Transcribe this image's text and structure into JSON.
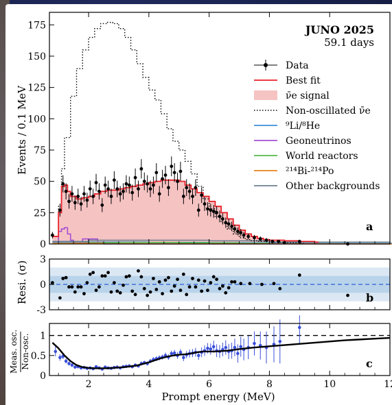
{
  "header": {
    "experiment": "JUNO 2025",
    "exposure": "59.1 days"
  },
  "panel_labels": {
    "a": "a",
    "b": "b",
    "c": "c"
  },
  "axis_labels": {
    "xlabel": "Prompt energy (MeV)",
    "ylabel_a": "Events / 0.1 MeV",
    "ylabel_b": "Resi. (σ)",
    "ylabel_c_num": "Meas. osc.",
    "ylabel_c_den": "Non-osc."
  },
  "colors": {
    "data": "#000000",
    "best_fit": "#e8202a",
    "signal_fill": "#f6c3c3",
    "non_osc": "#000000",
    "li_he": "#3a8fd9",
    "geoneutrinos": "#a24fd1",
    "world_reactors": "#52b946",
    "bipo": "#e6821e",
    "other": "#6e7f8f",
    "band1": "#b9d3ea",
    "band2": "#dbe8f4",
    "ratio_points": "#3a4fd8"
  },
  "legend": [
    {
      "key": "data",
      "label": "Data",
      "style": "point"
    },
    {
      "key": "best_fit",
      "label": "Best fit",
      "style": "line"
    },
    {
      "key": "signal_fill",
      "label": "ν̄e signal",
      "style": "fill"
    },
    {
      "key": "non_osc",
      "label": "Non-oscillated ν̄e",
      "style": "dotted"
    },
    {
      "key": "li_he",
      "label": "⁹Li/⁸He",
      "style": "line"
    },
    {
      "key": "geoneutrinos",
      "label": "Geoneutrinos",
      "style": "line"
    },
    {
      "key": "world_reactors",
      "label": "World reactors",
      "style": "line"
    },
    {
      "key": "bipo",
      "label": "²¹⁴Bi-²¹⁴Po",
      "style": "line"
    },
    {
      "key": "other",
      "label": "Other backgrounds",
      "style": "line"
    }
  ],
  "chart_data": [
    {
      "type": "line",
      "panel": "a",
      "xlim": [
        0.7,
        12
      ],
      "ylim": [
        0,
        185
      ],
      "xticks": [
        2,
        4,
        6,
        8,
        10,
        12
      ],
      "yticks": [
        0,
        25,
        50,
        75,
        100,
        125,
        150,
        175
      ],
      "data_points": {
        "x": [
          0.8,
          1.05,
          1.15,
          1.25,
          1.35,
          1.45,
          1.55,
          1.65,
          1.75,
          1.85,
          1.95,
          2.05,
          2.15,
          2.25,
          2.35,
          2.45,
          2.55,
          2.65,
          2.75,
          2.85,
          2.95,
          3.05,
          3.15,
          3.25,
          3.35,
          3.45,
          3.55,
          3.65,
          3.75,
          3.85,
          3.95,
          4.05,
          4.15,
          4.25,
          4.35,
          4.45,
          4.55,
          4.65,
          4.75,
          4.85,
          4.95,
          5.05,
          5.15,
          5.25,
          5.35,
          5.45,
          5.55,
          5.65,
          5.75,
          5.85,
          5.95,
          6.05,
          6.15,
          6.25,
          6.35,
          6.45,
          6.55,
          6.65,
          6.75,
          6.85,
          6.95,
          7.05,
          7.15,
          7.3,
          7.5,
          7.7,
          7.9,
          8.1,
          8.3,
          8.5,
          9.0,
          10.6
        ],
        "y": [
          7,
          27,
          48,
          42,
          34,
          40,
          33,
          38,
          32,
          40,
          35,
          44,
          38,
          49,
          42,
          31,
          47,
          44,
          38,
          51,
          44,
          40,
          42,
          48,
          47,
          41,
          53,
          44,
          60,
          50,
          48,
          44,
          47,
          57,
          40,
          52,
          55,
          45,
          62,
          57,
          50,
          58,
          38,
          45,
          42,
          38,
          45,
          27,
          39,
          32,
          28,
          27,
          26,
          25,
          22,
          20,
          17,
          16,
          14,
          12,
          10,
          9,
          7,
          6,
          5,
          4,
          3,
          2,
          2,
          1,
          2,
          0
        ]
      },
      "best_fit": {
        "x": [
          0.8,
          1.0,
          1.1,
          1.2,
          1.3,
          1.4,
          1.6,
          1.8,
          2.0,
          2.2,
          2.4,
          2.6,
          2.8,
          3.0,
          3.2,
          3.4,
          3.6,
          3.8,
          4.0,
          4.2,
          4.4,
          4.6,
          4.8,
          5.0,
          5.2,
          5.4,
          5.6,
          5.8,
          6.0,
          6.2,
          6.4,
          6.6,
          6.8,
          7.0,
          7.2,
          7.4,
          7.6,
          7.8,
          8.0,
          8.5,
          9.0,
          9.5
        ],
        "y": [
          6,
          25,
          46,
          47,
          42,
          38,
          36,
          37,
          38,
          40,
          42,
          43,
          43,
          44,
          45,
          46,
          47,
          48,
          49,
          50,
          51,
          51,
          51,
          50,
          47,
          44,
          41,
          38,
          34,
          30,
          25,
          20,
          15,
          11,
          8,
          6,
          4.5,
          3.5,
          3,
          2.5,
          2,
          1.5
        ]
      },
      "non_oscillated": {
        "x": [
          0.8,
          1.0,
          1.1,
          1.2,
          1.4,
          1.6,
          1.8,
          2.0,
          2.2,
          2.4,
          2.6,
          2.7,
          2.8,
          3.0,
          3.2,
          3.4,
          3.6,
          3.8,
          4.0,
          4.2,
          4.4,
          4.6,
          4.8,
          5.0,
          5.2,
          5.4,
          5.6,
          5.8,
          6.0,
          6.2,
          6.4,
          6.6,
          6.8,
          7.0,
          7.2,
          7.4,
          7.6,
          8.0,
          8.5,
          9.0
        ],
        "y": [
          6,
          30,
          60,
          85,
          118,
          140,
          155,
          165,
          172,
          176,
          177,
          177,
          176,
          172,
          165,
          155,
          144,
          133,
          123,
          115,
          104,
          92,
          82,
          75,
          66,
          56,
          46,
          36,
          28,
          22,
          17,
          12,
          8,
          5,
          3.5,
          2.5,
          2,
          1.5,
          1,
          0.5
        ]
      },
      "li_he": {
        "x": [
          0.8,
          2,
          4,
          6,
          8,
          12
        ],
        "y": [
          1.5,
          1.5,
          1.2,
          0.9,
          0.5,
          0.1
        ]
      },
      "geoneutrinos": {
        "x": [
          0.8,
          1.0,
          1.1,
          1.2,
          1.3,
          1.4,
          1.5,
          1.6,
          1.8,
          2.0,
          2.3,
          2.5,
          12
        ],
        "y": [
          2,
          10,
          12,
          13,
          8,
          3,
          2,
          2,
          4,
          4,
          1,
          0,
          0
        ]
      },
      "world_reactors": {
        "x": [
          0.8,
          2,
          3,
          4,
          5,
          6,
          7,
          8,
          12
        ],
        "y": [
          0.5,
          1,
          1.2,
          1.2,
          1,
          0.8,
          0.5,
          0.2,
          0
        ]
      },
      "bipo": {
        "x": [
          0.8,
          1.5,
          2,
          2.5,
          3,
          12
        ],
        "y": [
          0.5,
          0.7,
          0.5,
          0.2,
          0.1,
          0
        ]
      },
      "other": {
        "x": [
          0.8,
          2,
          4,
          6,
          8,
          12
        ],
        "y": [
          2,
          3,
          3,
          2.5,
          1.5,
          0.5
        ]
      }
    },
    {
      "type": "scatter",
      "panel": "b",
      "xlim": [
        0.7,
        12
      ],
      "ylim": [
        -3,
        3
      ],
      "yticks": [
        -3,
        0,
        3
      ],
      "bands": [
        1,
        2
      ],
      "x": [
        0.8,
        1.05,
        1.15,
        1.25,
        1.35,
        1.45,
        1.55,
        1.65,
        1.75,
        1.85,
        1.95,
        2.05,
        2.15,
        2.25,
        2.35,
        2.45,
        2.55,
        2.65,
        2.75,
        2.85,
        2.95,
        3.05,
        3.15,
        3.25,
        3.35,
        3.45,
        3.55,
        3.65,
        3.75,
        3.85,
        3.95,
        4.05,
        4.15,
        4.25,
        4.35,
        4.45,
        4.55,
        4.65,
        4.75,
        4.85,
        4.95,
        5.05,
        5.15,
        5.25,
        5.35,
        5.45,
        5.55,
        5.65,
        5.75,
        5.85,
        5.95,
        6.05,
        6.15,
        6.25,
        6.35,
        6.45,
        6.55,
        6.65,
        6.75,
        6.85,
        7.05,
        7.35,
        7.75,
        8.15,
        8.35,
        9.0,
        10.6
      ],
      "y": [
        0.2,
        -1.6,
        0.7,
        0.8,
        -0.3,
        -0.3,
        -0.9,
        -0.3,
        -0.3,
        -1.1,
        0.2,
        1.2,
        1.4,
        -0.7,
        -0.3,
        1.0,
        1.0,
        1.4,
        -0.9,
        0.2,
        -0.8,
        -1.0,
        -0.1,
        0.9,
        1.0,
        -0.8,
        -1.2,
        1.6,
        0.9,
        -0.5,
        -1.3,
        -0.9,
        0.7,
        -0.6,
        0.3,
        -1.1,
        0.5,
        0.8,
        -0.8,
        -0.2,
        0.6,
        -0.7,
        1.2,
        -1.2,
        -0.3,
        0.7,
        -0.3,
        0.5,
        -0.8,
        0.4,
        -0.7,
        0.2,
        0.9,
        0.6,
        -0.5,
        -0.2,
        -1.0,
        -0.4,
        0.3,
        0.3,
        0.1,
        0.1,
        0.0,
        0.1,
        -0.5,
        1.1,
        -1.3
      ]
    },
    {
      "type": "line",
      "panel": "c",
      "xlim": [
        0.7,
        12
      ],
      "ylim": [
        0,
        1.3
      ],
      "yticks": [
        0,
        0.5,
        1
      ],
      "xticks": [
        2,
        4,
        6,
        8,
        10,
        12
      ],
      "reference": 1,
      "expected": {
        "x": [
          0.8,
          1.0,
          1.2,
          1.4,
          1.6,
          1.8,
          2.0,
          2.2,
          2.4,
          2.6,
          2.8,
          3.0,
          3.2,
          3.4,
          3.6,
          3.8,
          4.0,
          4.2,
          4.4,
          4.6,
          4.8,
          5.0,
          5.2,
          5.4,
          5.6,
          5.8,
          6.0,
          6.2,
          6.4,
          6.6,
          6.8,
          7.0,
          7.5,
          8.0,
          8.5,
          9.0,
          9.5,
          10,
          10.5,
          11,
          11.5,
          12
        ],
        "y": [
          0.82,
          0.68,
          0.5,
          0.36,
          0.26,
          0.21,
          0.19,
          0.18,
          0.18,
          0.18,
          0.19,
          0.2,
          0.21,
          0.23,
          0.25,
          0.29,
          0.33,
          0.38,
          0.43,
          0.47,
          0.5,
          0.52,
          0.53,
          0.55,
          0.58,
          0.6,
          0.6,
          0.6,
          0.61,
          0.62,
          0.64,
          0.66,
          0.7,
          0.73,
          0.76,
          0.79,
          0.82,
          0.85,
          0.88,
          0.9,
          0.92,
          0.94
        ]
      },
      "points": {
        "x": [
          0.9,
          1.05,
          1.15,
          1.25,
          1.35,
          1.45,
          1.55,
          1.65,
          1.75,
          1.85,
          1.95,
          2.05,
          2.15,
          2.25,
          2.35,
          2.45,
          2.55,
          2.65,
          2.75,
          2.85,
          2.95,
          3.05,
          3.15,
          3.25,
          3.35,
          3.45,
          3.55,
          3.65,
          3.75,
          3.85,
          3.95,
          4.05,
          4.15,
          4.25,
          4.35,
          4.45,
          4.55,
          4.65,
          4.75,
          4.85,
          4.95,
          5.05,
          5.15,
          5.25,
          5.35,
          5.45,
          5.55,
          5.65,
          5.75,
          5.85,
          5.95,
          6.05,
          6.15,
          6.25,
          6.35,
          6.45,
          6.55,
          6.65,
          6.75,
          6.85,
          6.95,
          7.05,
          7.15,
          7.3,
          7.5,
          7.7,
          7.9,
          8.15,
          8.35,
          9.0
        ],
        "y": [
          0.6,
          0.45,
          0.48,
          0.36,
          0.3,
          0.26,
          0.21,
          0.22,
          0.19,
          0.2,
          0.18,
          0.19,
          0.17,
          0.22,
          0.19,
          0.16,
          0.21,
          0.19,
          0.18,
          0.2,
          0.21,
          0.19,
          0.22,
          0.23,
          0.24,
          0.22,
          0.26,
          0.24,
          0.3,
          0.32,
          0.3,
          0.36,
          0.4,
          0.42,
          0.44,
          0.46,
          0.5,
          0.46,
          0.55,
          0.56,
          0.5,
          0.58,
          0.45,
          0.52,
          0.55,
          0.56,
          0.58,
          0.5,
          0.58,
          0.62,
          0.68,
          0.66,
          0.72,
          0.62,
          0.6,
          0.65,
          0.7,
          0.6,
          0.62,
          0.7,
          0.55,
          0.72,
          0.65,
          0.7,
          0.8,
          0.75,
          0.7,
          0.78,
          0.85,
          1.2
        ],
        "err": [
          0.12,
          0.08,
          0.07,
          0.06,
          0.05,
          0.05,
          0.04,
          0.04,
          0.04,
          0.04,
          0.04,
          0.04,
          0.03,
          0.04,
          0.03,
          0.03,
          0.04,
          0.03,
          0.03,
          0.04,
          0.04,
          0.03,
          0.04,
          0.04,
          0.04,
          0.04,
          0.04,
          0.04,
          0.05,
          0.05,
          0.05,
          0.05,
          0.06,
          0.06,
          0.06,
          0.06,
          0.07,
          0.07,
          0.07,
          0.08,
          0.08,
          0.08,
          0.09,
          0.09,
          0.1,
          0.1,
          0.11,
          0.11,
          0.12,
          0.13,
          0.13,
          0.14,
          0.15,
          0.16,
          0.16,
          0.17,
          0.18,
          0.19,
          0.2,
          0.22,
          0.23,
          0.25,
          0.27,
          0.29,
          0.3,
          0.35,
          0.4,
          0.45,
          0.55,
          0.4
        ]
      }
    }
  ]
}
